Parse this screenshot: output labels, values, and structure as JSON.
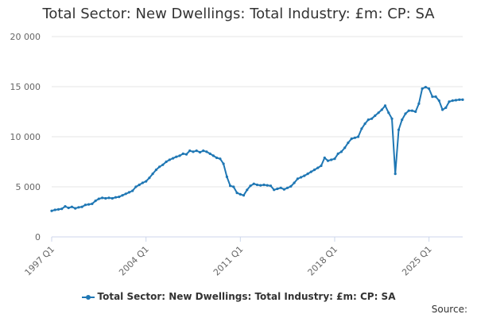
{
  "chart_data": {
    "type": "line",
    "title": "Total Sector: New Dwellings: Total Industry: £m: CP: SA",
    "xlabel": "",
    "ylabel": "",
    "x_start": "1997 Q1",
    "x_end": "2025 Q1",
    "x_ticks": [
      "1997 Q1",
      "2004 Q1",
      "2011 Q1",
      "2018 Q1",
      "2025 Q1"
    ],
    "ylim": [
      0,
      20000
    ],
    "y_ticks": [
      0,
      5000,
      10000,
      15000,
      20000
    ],
    "y_tick_labels": [
      "0",
      "5 000",
      "10 000",
      "15 000",
      "20 000"
    ],
    "grid": "horizontal",
    "legend_position": "bottom",
    "series": [
      {
        "name": "Total Sector: New Dwellings: Total Industry: £m: CP: SA",
        "color": "#1f77b4",
        "values": [
          2600,
          2700,
          2750,
          2800,
          3050,
          2900,
          3000,
          2850,
          2950,
          3000,
          3200,
          3250,
          3300,
          3600,
          3800,
          3900,
          3850,
          3900,
          3850,
          3950,
          4000,
          4150,
          4300,
          4450,
          4600,
          5000,
          5200,
          5400,
          5550,
          5900,
          6300,
          6700,
          7000,
          7200,
          7500,
          7700,
          7850,
          8000,
          8100,
          8300,
          8250,
          8600,
          8500,
          8600,
          8450,
          8600,
          8500,
          8300,
          8100,
          7900,
          7800,
          7300,
          6000,
          5100,
          5000,
          4400,
          4250,
          4150,
          4700,
          5100,
          5300,
          5200,
          5150,
          5200,
          5150,
          5100,
          4700,
          4800,
          4900,
          4750,
          4900,
          5050,
          5400,
          5800,
          5950,
          6100,
          6300,
          6500,
          6700,
          6900,
          7100,
          7900,
          7600,
          7700,
          7800,
          8300,
          8500,
          8900,
          9400,
          9800,
          9900,
          10000,
          10800,
          11300,
          11700,
          11800,
          12100,
          12400,
          12700,
          13100,
          12400,
          11800,
          6300,
          10700,
          11700,
          12300,
          12600,
          12600,
          12500,
          13300,
          14800,
          14950,
          14800,
          14000,
          14000,
          13600,
          12700,
          12900,
          13500,
          13600,
          13650,
          13700,
          13700
        ]
      }
    ]
  },
  "credits": "Source:"
}
